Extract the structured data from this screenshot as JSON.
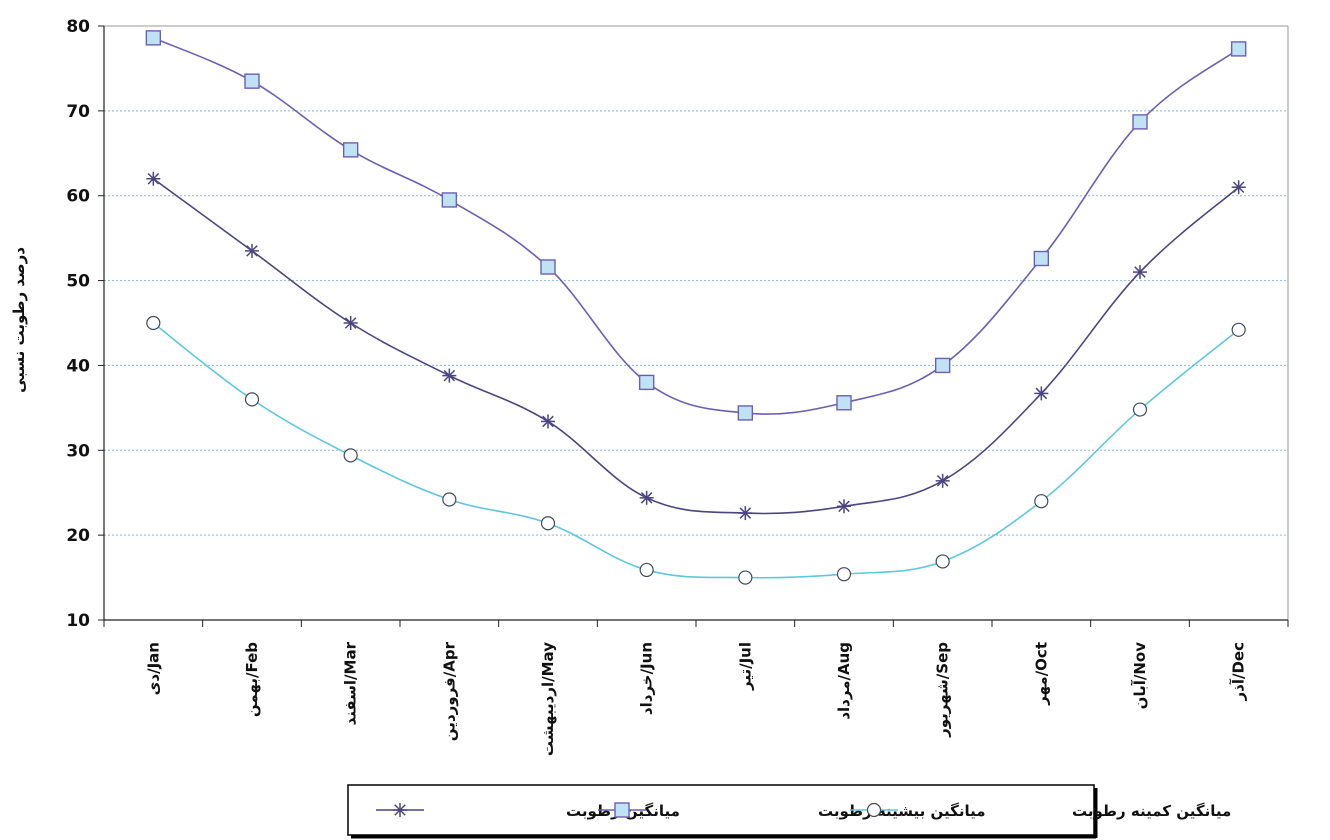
{
  "chart_data": {
    "type": "line",
    "ylabel": "درصد رطوبت نسبی",
    "xlabel": "",
    "ylim": [
      10,
      80
    ],
    "yticks": [
      10,
      20,
      30,
      40,
      50,
      60,
      70,
      80
    ],
    "grid": "horizontal dashed",
    "smooth": true,
    "legend_position": "bottom",
    "categories": [
      "دی/Jan",
      "بهمن/Feb",
      "اسفند/Mar",
      "فروردین/Apr",
      "اردیبهشت/May",
      "خرداد/Jun",
      "تیر/Jul",
      "مرداد/Aug",
      "شهریور/Sep",
      "مهر/Oct",
      "آبان/Nov",
      "آذر/Dec"
    ],
    "series": [
      {
        "name": "میانگین رطوبت",
        "marker": "star",
        "color": "#4a4580",
        "values": [
          62,
          53.5,
          45,
          38.8,
          33.4,
          24.4,
          22.6,
          23.4,
          26.4,
          36.7,
          51,
          61
        ]
      },
      {
        "name": "میانگین بیشینه رطوبت",
        "marker": "square",
        "color": "#6b5fb5",
        "fill": "#bfe3f5",
        "values": [
          78.6,
          73.5,
          65.4,
          59.5,
          51.6,
          38,
          34.4,
          35.6,
          40,
          52.6,
          68.7,
          77.3
        ]
      },
      {
        "name": "میانگین کمینه رطوبت",
        "marker": "circle",
        "color": "#5bc8e0",
        "values": [
          45,
          36,
          29.4,
          24.2,
          21.4,
          15.9,
          15,
          15.4,
          16.9,
          24,
          34.8,
          44.2
        ]
      }
    ]
  }
}
